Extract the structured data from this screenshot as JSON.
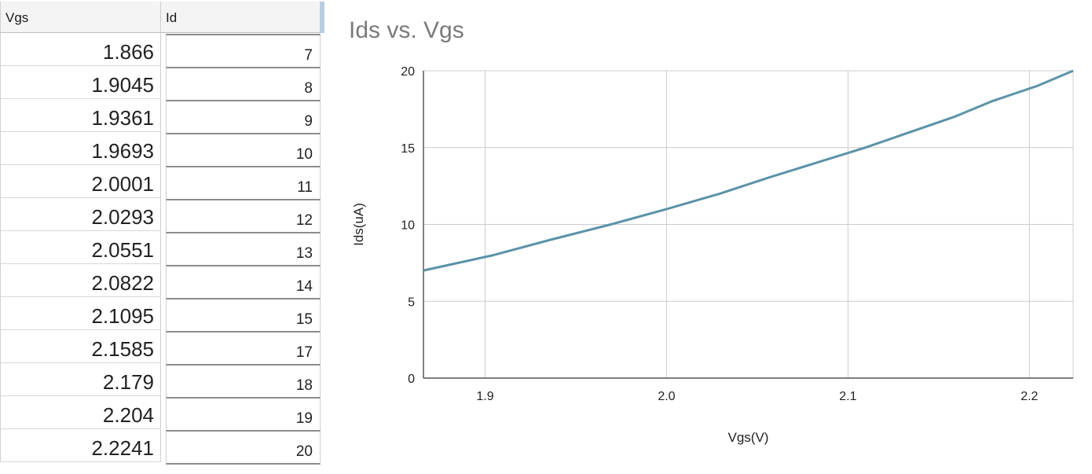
{
  "table": {
    "headers": {
      "vgs": "Vgs",
      "id": "Id"
    },
    "rows": [
      {
        "vgs": "1.866",
        "id": "7"
      },
      {
        "vgs": "1.9045",
        "id": "8"
      },
      {
        "vgs": "1.9361",
        "id": "9"
      },
      {
        "vgs": "1.9693",
        "id": "10"
      },
      {
        "vgs": "2.0001",
        "id": "11"
      },
      {
        "vgs": "2.0293",
        "id": "12"
      },
      {
        "vgs": "2.0551",
        "id": "13"
      },
      {
        "vgs": "2.0822",
        "id": "14"
      },
      {
        "vgs": "2.1095",
        "id": "15"
      },
      {
        "vgs": "2.1585",
        "id": "17"
      },
      {
        "vgs": "2.179",
        "id": "18"
      },
      {
        "vgs": "2.204",
        "id": "19"
      },
      {
        "vgs": "2.2241",
        "id": "20"
      }
    ]
  },
  "chart_data": {
    "type": "line",
    "title": "Ids vs. Vgs",
    "xlabel": "Vgs(V)",
    "ylabel": "Ids(uA)",
    "xlim": [
      1.866,
      2.2241
    ],
    "ylim": [
      0,
      20
    ],
    "xticks": [
      1.9,
      2.0,
      2.1,
      2.2
    ],
    "xtick_labels": [
      "1.9",
      "2.0",
      "2.1",
      "2.2"
    ],
    "yticks": [
      0,
      5,
      10,
      15,
      20
    ],
    "ytick_labels": [
      "0",
      "5",
      "10",
      "15",
      "20"
    ],
    "grid": true,
    "series": [
      {
        "name": "Ids",
        "x": [
          1.866,
          1.9045,
          1.9361,
          1.9693,
          2.0001,
          2.0293,
          2.0551,
          2.0822,
          2.1095,
          2.1585,
          2.179,
          2.204,
          2.2241
        ],
        "y": [
          7,
          8,
          9,
          10,
          11,
          12,
          13,
          14,
          15,
          17,
          18,
          19,
          20
        ]
      }
    ],
    "colors": {
      "line": "#5b93a8",
      "grid": "#cccccc",
      "axis": "#333333"
    }
  }
}
